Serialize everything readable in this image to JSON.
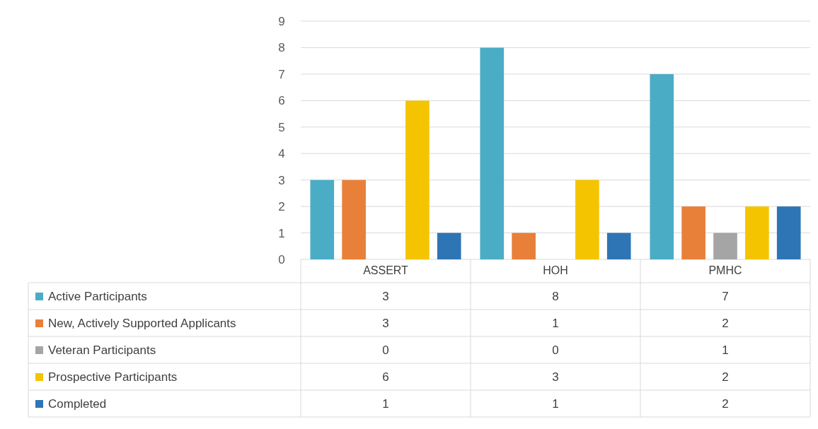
{
  "chart_data": {
    "type": "bar",
    "categories": [
      "ASSERT",
      "HOH",
      "PMHC"
    ],
    "series": [
      {
        "name": "Active Participants",
        "color": "#4bacc6",
        "values": [
          3,
          8,
          7
        ]
      },
      {
        "name": "New, Actively Supported Applicants",
        "color": "#e8803a",
        "values": [
          3,
          1,
          2
        ]
      },
      {
        "name": "Veteran Participants",
        "color": "#a5a5a5",
        "values": [
          0,
          0,
          1
        ]
      },
      {
        "name": "Prospective Participants",
        "color": "#f5c400",
        "values": [
          6,
          3,
          2
        ]
      },
      {
        "name": "Completed",
        "color": "#2e75b6",
        "values": [
          1,
          1,
          2
        ]
      }
    ],
    "ylim": [
      0,
      9
    ],
    "yticks": [
      0,
      1,
      2,
      3,
      4,
      5,
      6,
      7,
      8,
      9
    ],
    "grid": "y",
    "data_labels": true,
    "legend": "bottom"
  }
}
